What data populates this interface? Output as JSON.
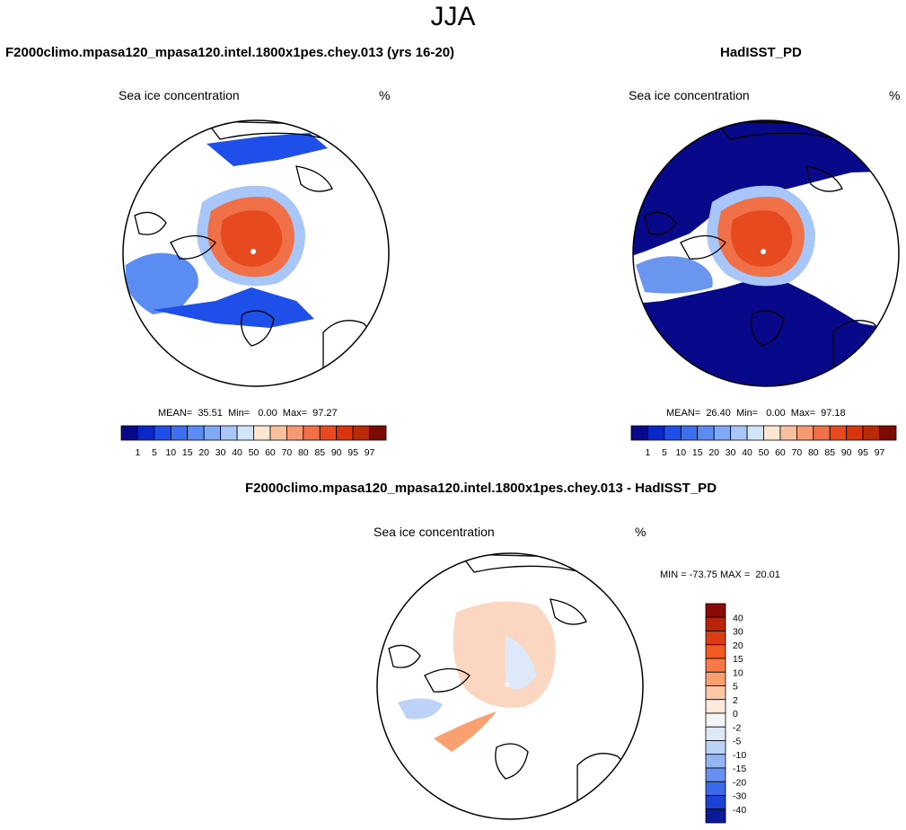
{
  "figure": {
    "season": "JJA",
    "colors": {
      "land_outline": "#000000",
      "ocean": "#ffffff"
    }
  },
  "panels": [
    {
      "title": "F2000climo.mpasa120_mpasa120.intel.1800x1pes.chey.013 (yrs 16-20)",
      "variable": "Sea ice concentration",
      "units": "%",
      "stats_text": "MEAN=  35.51  Min=   0.00  Max=  97.27",
      "ice_style": "model"
    },
    {
      "title": "HadISST_PD",
      "variable": "Sea ice concentration",
      "units": "%",
      "stats_text": "MEAN=  26.40  Min=   0.00  Max=  97.18",
      "ice_style": "obs"
    },
    {
      "title": "F2000climo.mpasa120_mpasa120.intel.1800x1pes.chey.013 - HadISST_PD",
      "variable": "Sea ice concentration",
      "units": "%",
      "stats_text": "MIN = -73.75 MAX =  20.01",
      "ice_style": "diff"
    }
  ],
  "chart_data": [
    {
      "type": "heatmap",
      "title": "F2000climo.mpasa120_mpasa120.intel.1800x1pes.chey.013 (yrs 16-20)",
      "projection": "north polar stereographic",
      "variable": "Sea ice concentration",
      "units": "%",
      "mean": 35.51,
      "min": 0.0,
      "max": 97.27,
      "colorbar": {
        "levels": [
          "1",
          "5",
          "10",
          "15",
          "20",
          "30",
          "40",
          "50",
          "60",
          "70",
          "80",
          "85",
          "90",
          "95",
          "97"
        ],
        "colors": [
          "#08088a",
          "#0a28c8",
          "#1e4fe8",
          "#3c6ff0",
          "#5a8cf2",
          "#7fa8f5",
          "#a8c6f8",
          "#d2e4fa",
          "#fde6d2",
          "#f9c0a0",
          "#f59a72",
          "#f07048",
          "#e84a20",
          "#d8340e",
          "#b82a08",
          "#7a0c04"
        ]
      }
    },
    {
      "type": "heatmap",
      "title": "HadISST_PD",
      "projection": "north polar stereographic",
      "variable": "Sea ice concentration",
      "units": "%",
      "mean": 26.4,
      "min": 0.0,
      "max": 97.18,
      "colorbar": {
        "levels": [
          "1",
          "5",
          "10",
          "15",
          "20",
          "30",
          "40",
          "50",
          "60",
          "70",
          "80",
          "85",
          "90",
          "95",
          "97"
        ],
        "colors": [
          "#08088a",
          "#0a28c8",
          "#1e4fe8",
          "#3c6ff0",
          "#5a8cf2",
          "#7fa8f5",
          "#a8c6f8",
          "#d2e4fa",
          "#fde6d2",
          "#f9c0a0",
          "#f59a72",
          "#f07048",
          "#e84a20",
          "#d8340e",
          "#b82a08",
          "#7a0c04"
        ]
      }
    },
    {
      "type": "heatmap",
      "title": "F2000climo.mpasa120_mpasa120.intel.1800x1pes.chey.013 - HadISST_PD",
      "projection": "north polar stereographic",
      "variable": "Sea ice concentration",
      "units": "%",
      "min": -73.75,
      "max": 20.01,
      "colorbar": {
        "orientation": "vertical",
        "levels": [
          "40",
          "30",
          "20",
          "15",
          "10",
          "5",
          "2",
          "0",
          "-2",
          "-5",
          "-10",
          "-15",
          "-20",
          "-30",
          "-40"
        ],
        "colors": [
          "#8a0a04",
          "#b8240a",
          "#dc3c14",
          "#f25a20",
          "#f67a48",
          "#f8a070",
          "#fbc8a8",
          "#fde8dc",
          "#f4f4f4",
          "#dde8f8",
          "#bcd2f6",
          "#94b4f2",
          "#6890ee",
          "#3c6ae8",
          "#1a42d6",
          "#0a1a9a"
        ]
      }
    }
  ]
}
